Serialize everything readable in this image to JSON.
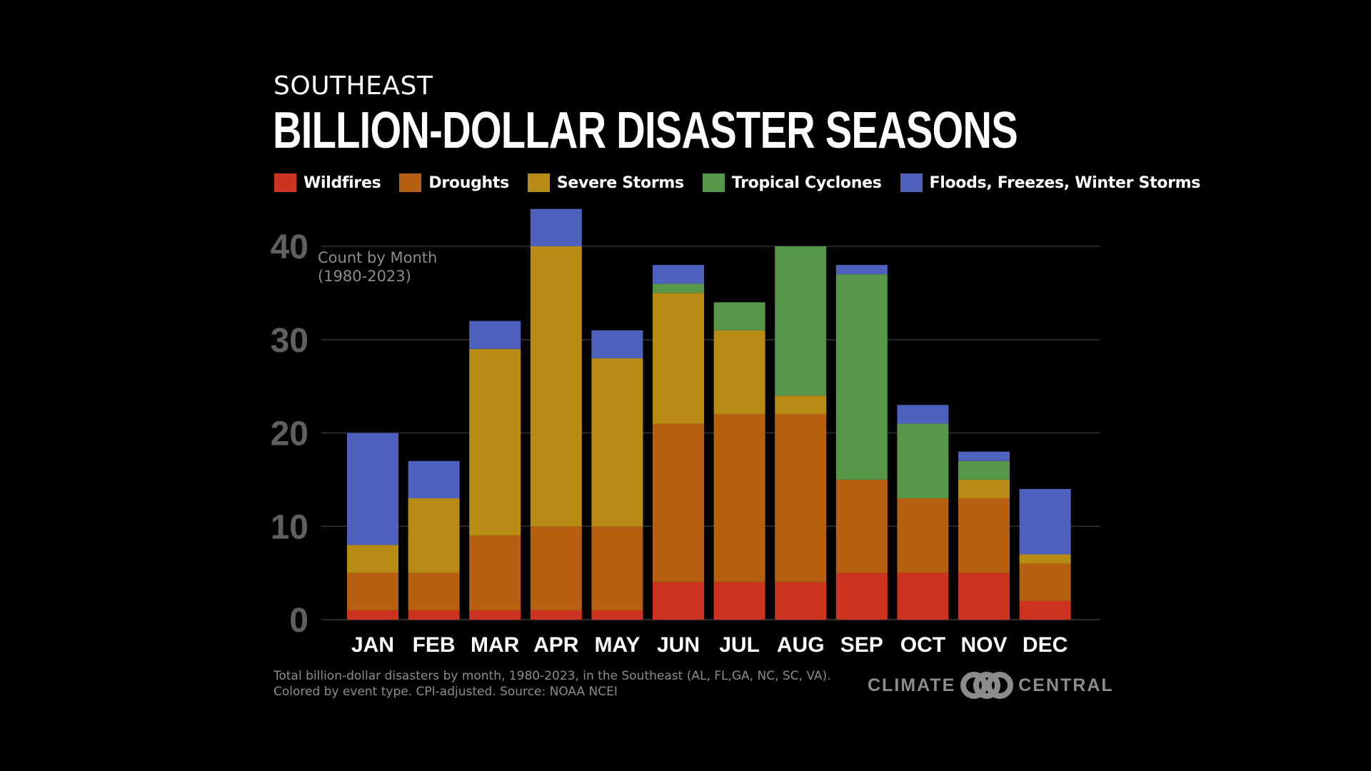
{
  "header": {
    "subtitle": "SOUTHEAST",
    "title": "BILLION-DOLLAR DISASTER SEASONS"
  },
  "legend": [
    {
      "label": "Wildfires",
      "color": "#cc3320"
    },
    {
      "label": "Droughts",
      "color": "#b86012"
    },
    {
      "label": "Severe Storms",
      "color": "#b88b14"
    },
    {
      "label": "Tropical Cyclones",
      "color": "#56974a"
    },
    {
      "label": "Floods, Freezes, Winter Storms",
      "color": "#4e62bd"
    }
  ],
  "annotation": {
    "line1": "Count by Month",
    "line2": "(1980-2023)"
  },
  "footnote": {
    "line1": "Total billion-dollar disasters by month, 1980-2023, in the Southeast (AL, FL,GA, NC, SC, VA).",
    "line2": "Colored by event type. CPI-adjusted. Source: NOAA NCEI"
  },
  "logo": {
    "left": "CLIMATE",
    "right": "CENTRAL",
    "mark": "climate-central-logo-icon"
  },
  "chart_data": {
    "type": "bar",
    "stacked": true,
    "categories": [
      "JAN",
      "FEB",
      "MAR",
      "APR",
      "MAY",
      "JUN",
      "JUL",
      "AUG",
      "SEP",
      "OCT",
      "NOV",
      "DEC"
    ],
    "series": [
      {
        "name": "Wildfires",
        "color": "#cc3320",
        "values": [
          1,
          1,
          1,
          1,
          1,
          4,
          4,
          4,
          5,
          5,
          5,
          2
        ]
      },
      {
        "name": "Droughts",
        "color": "#b86012",
        "values": [
          4,
          4,
          8,
          9,
          9,
          17,
          18,
          18,
          10,
          8,
          8,
          4
        ]
      },
      {
        "name": "Severe Storms",
        "color": "#b88b14",
        "values": [
          3,
          8,
          20,
          30,
          18,
          14,
          9,
          2,
          0,
          0,
          2,
          1
        ]
      },
      {
        "name": "Tropical Cyclones",
        "color": "#56974a",
        "values": [
          0,
          0,
          0,
          0,
          0,
          1,
          3,
          16,
          22,
          8,
          2,
          0
        ]
      },
      {
        "name": "Floods, Freezes, Winter Storms",
        "color": "#4e62bd",
        "values": [
          12,
          4,
          3,
          4,
          3,
          2,
          0,
          0,
          1,
          2,
          1,
          7
        ]
      }
    ],
    "ylim": [
      0,
      40
    ],
    "yticks": [
      0,
      10,
      20,
      30,
      40
    ],
    "grid": true,
    "legend_position": "top"
  }
}
